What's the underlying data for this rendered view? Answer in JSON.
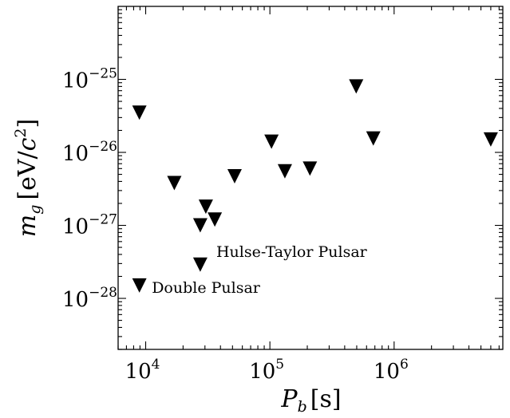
{
  "chart_data": {
    "type": "scatter",
    "title": "",
    "xlabel": {
      "main": "P",
      "sub": "b",
      "unit": "[s]"
    },
    "ylabel": {
      "main": "m",
      "sub": "g",
      "unit_pre": "[eV/",
      "unit_c": "c",
      "unit_exp": "2",
      "unit_post": "]"
    },
    "xscale": "log",
    "yscale": "log",
    "xlim": [
      6000,
      7500000
    ],
    "ylim": [
      2e-29,
      1e-24
    ],
    "grid": false,
    "marker": "downward-triangle",
    "marker_color": "#000000",
    "x_ticks": [
      {
        "value": 10000,
        "base": "10",
        "exp": "4"
      },
      {
        "value": 100000,
        "base": "10",
        "exp": "5"
      },
      {
        "value": 1000000,
        "base": "10",
        "exp": "6"
      }
    ],
    "y_ticks": [
      {
        "value": 1e-25,
        "base": "10",
        "exp": "−25"
      },
      {
        "value": 1e-26,
        "base": "10",
        "exp": "−26"
      },
      {
        "value": 1e-27,
        "base": "10",
        "exp": "−27"
      },
      {
        "value": 1e-28,
        "base": "10",
        "exp": "−28"
      }
    ],
    "points": [
      {
        "x": 8900,
        "y": 3.5e-26
      },
      {
        "x": 8900,
        "y": 1.5e-28
      },
      {
        "x": 17000,
        "y": 3.8e-27
      },
      {
        "x": 27500,
        "y": 1e-27
      },
      {
        "x": 27500,
        "y": 2.9e-28
      },
      {
        "x": 30500,
        "y": 1.8e-27
      },
      {
        "x": 36000,
        "y": 1.2e-27
      },
      {
        "x": 52000,
        "y": 4.7e-27
      },
      {
        "x": 103000,
        "y": 1.4e-26
      },
      {
        "x": 132000,
        "y": 5.5e-27
      },
      {
        "x": 210000,
        "y": 6e-27
      },
      {
        "x": 495000,
        "y": 8e-26
      },
      {
        "x": 680000,
        "y": 1.55e-26
      },
      {
        "x": 6000000,
        "y": 1.5e-26
      }
    ],
    "annotations": [
      {
        "text": "Hulse-Taylor Pulsar",
        "x": 37000,
        "y": 3.7e-28
      },
      {
        "text": "Double Pulsar",
        "x": 11200,
        "y": 1.2e-28
      }
    ]
  }
}
